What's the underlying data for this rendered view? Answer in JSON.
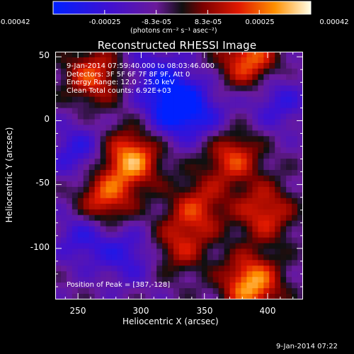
{
  "colorbar": {
    "ticks": [
      "-0.00042",
      "-0.00025",
      "-8.3e-05",
      "8.3e-05",
      "0.00025",
      "0.00042"
    ],
    "units": "(photons cm⁻² s⁻¹ asec⁻²)"
  },
  "chart_data": {
    "type": "heatmap",
    "title": "Reconstructed RHESSI Image",
    "xlabel": "Heliocentric X (arcsec)",
    "ylabel": "Heliocentric Y (arcsec)",
    "x_ticks": [
      "250",
      "300",
      "350",
      "400"
    ],
    "y_ticks": [
      "50",
      "0",
      "-50",
      "-100"
    ],
    "xlim": [
      232,
      428
    ],
    "ylim": [
      -140,
      54
    ],
    "color_range": [
      -0.00042,
      0.00042
    ],
    "annotations": [
      "9-Jan-2014 07:59:40.000 to 08:03:46.000",
      "Detectors: 3F 5F 6F 7F 8F 9F, Att 0",
      "Energy Range: 12.0 - 25.0 keV",
      "Clean     Total counts: 6.92E+03"
    ],
    "peak_label": "Position of Peak = [387,-128]",
    "peak": [
      387,
      -128
    ],
    "features": [
      {
        "x": 328,
        "y": 12,
        "value": -0.00042
      },
      {
        "x": 262,
        "y": 35,
        "value": 0.0003
      },
      {
        "x": 292,
        "y": -30,
        "value": 0.0004
      },
      {
        "x": 270,
        "y": -62,
        "value": 0.00032
      },
      {
        "x": 385,
        "y": 48,
        "value": 0.00035
      },
      {
        "x": 372,
        "y": -28,
        "value": 0.0003
      },
      {
        "x": 398,
        "y": -72,
        "value": 0.00028
      },
      {
        "x": 345,
        "y": -68,
        "value": 0.00025
      },
      {
        "x": 330,
        "y": -98,
        "value": 0.00022
      },
      {
        "x": 387,
        "y": -128,
        "value": 0.00042
      },
      {
        "x": 250,
        "y": -25,
        "value": -0.0002
      },
      {
        "x": 255,
        "y": -90,
        "value": -0.0002
      },
      {
        "x": 290,
        "y": -105,
        "value": -0.00018
      },
      {
        "x": 310,
        "y": 40,
        "value": -0.00015
      },
      {
        "x": 408,
        "y": 15,
        "value": -0.00018
      },
      {
        "x": 355,
        "y": 0,
        "value": -0.00012
      }
    ]
  },
  "footer_date": "9-Jan-2014 07:22"
}
